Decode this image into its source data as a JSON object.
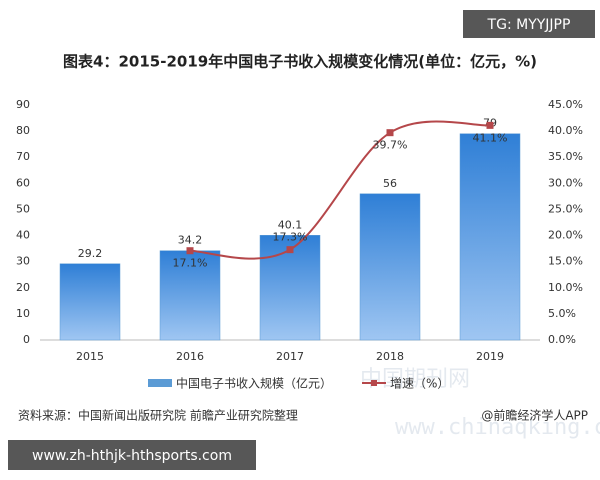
{
  "watermark_top": "TG: MYYJJPP",
  "watermark_bottom": "www.zh-hthjk-hthsports.com",
  "watermark_site": "www.chinaqking.com",
  "watermark_cn": "中国期刊网",
  "chart_data": {
    "type": "bar",
    "title": "图表4：2015-2019年中国电子书收入规模变化情况(单位：亿元，%)",
    "categories": [
      "2015",
      "2016",
      "2017",
      "2018",
      "2019"
    ],
    "series": [
      {
        "name": "中国电子书收入规模（亿元）",
        "type": "bar",
        "color": "#5b9bd5",
        "values": [
          29.2,
          34.2,
          40.1,
          56,
          79
        ]
      },
      {
        "name": "增速（%）",
        "type": "line",
        "axis": "y2",
        "color": "#b5474a",
        "values": [
          null,
          17.1,
          17.3,
          39.7,
          41.1
        ],
        "value_labels": [
          null,
          "17.1%",
          "17.3%",
          "39.7%",
          "41.1%"
        ]
      }
    ],
    "ylim": [
      0,
      90
    ],
    "yticks": [
      0,
      10,
      20,
      30,
      40,
      50,
      60,
      70,
      80,
      90
    ],
    "y2lim": [
      0,
      45
    ],
    "y2ticks": [
      {
        "value": 0,
        "label": "0.0%"
      },
      {
        "value": 5,
        "label": "5.0%"
      },
      {
        "value": 10,
        "label": "10.0%"
      },
      {
        "value": 15,
        "label": "15.0%"
      },
      {
        "value": 20,
        "label": "20.0%"
      },
      {
        "value": 25,
        "label": "25.0%"
      },
      {
        "value": 30,
        "label": "30.0%"
      },
      {
        "value": 35,
        "label": "35.0%"
      },
      {
        "value": 40,
        "label": "40.0%"
      },
      {
        "value": 45,
        "label": "45.0%"
      }
    ],
    "legend": "bottom",
    "source": "资料来源：中国新闻出版研究院 前瞻产业研究院整理",
    "credit": "@前瞻经济学人APP"
  }
}
